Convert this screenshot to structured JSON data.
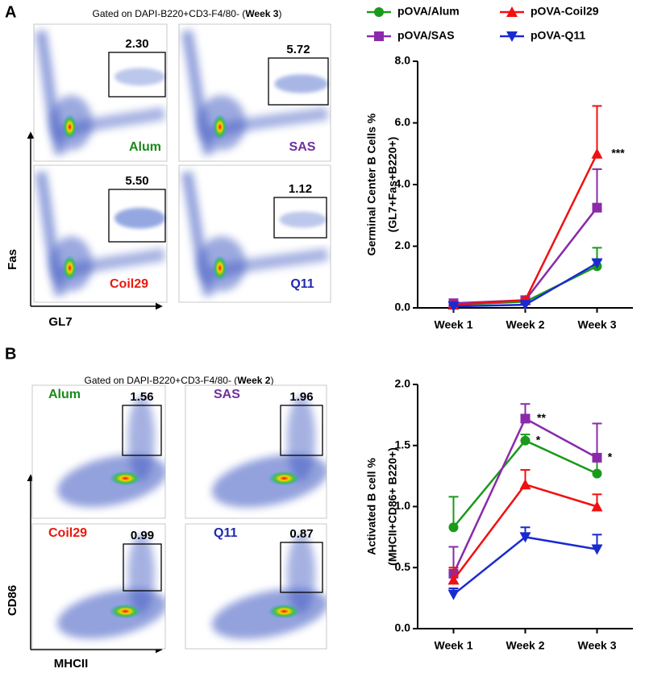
{
  "panel_a": {
    "label": "A",
    "title_prefix": "Gated  on DAPI-B220+CD3-F4/80- (",
    "title_week": "Week 3",
    "title_suffix": ")",
    "y_axis": "Fas",
    "x_axis": "GL7",
    "plots": [
      {
        "group": "Alum",
        "color": "#1a8a1a",
        "percent": "2.30"
      },
      {
        "group": "SAS",
        "color": "#7030a0",
        "percent": "5.72"
      },
      {
        "group": "Coil29",
        "color": "#e8190f",
        "percent": "5.50"
      },
      {
        "group": "Q11",
        "color": "#1f2ab0",
        "percent": "1.12"
      }
    ]
  },
  "panel_b": {
    "label": "B",
    "title_prefix": "Gated  on DAPI-B220+CD3-F4/80- (",
    "title_week": "Week 2",
    "title_suffix": ")",
    "y_axis": "CD86",
    "x_axis": "MHCII",
    "plots": [
      {
        "group": "Alum",
        "color": "#1a8a1a",
        "percent": "1.56"
      },
      {
        "group": "SAS",
        "color": "#7030a0",
        "percent": "1.96"
      },
      {
        "group": "Coil29",
        "color": "#e8190f",
        "percent": "0.99"
      },
      {
        "group": "Q11",
        "color": "#1f2ab0",
        "percent": "0.87"
      }
    ]
  },
  "chart_data": [
    {
      "type": "line",
      "ylabel": [
        "Germinal Center B Cells %",
        "(GL7+Fas+B220+)"
      ],
      "categories": [
        "Week 1",
        "Week 2",
        "Week 3"
      ],
      "ylim": [
        0,
        8
      ],
      "yticks": [
        {
          "value": 0,
          "label": "0.0"
        },
        {
          "value": 2,
          "label": "2.0"
        },
        {
          "value": 4,
          "label": "4.0"
        },
        {
          "value": 6,
          "label": "6.0"
        },
        {
          "value": 8,
          "label": "8.0"
        }
      ],
      "legend": "top",
      "series": [
        {
          "name": "pOVA/Alum",
          "color": "#1a9a1a",
          "marker": "circle",
          "values": [
            0.1,
            0.2,
            1.35
          ],
          "errors": [
            0.05,
            0.05,
            0.6
          ]
        },
        {
          "name": "pOVA/SAS",
          "color": "#8a2aaa",
          "marker": "square",
          "values": [
            0.15,
            0.25,
            3.25
          ],
          "errors": [
            0.05,
            0.05,
            1.25
          ]
        },
        {
          "name": "pOVA-Coil29",
          "color": "#f01010",
          "marker": "triangle-up",
          "values": [
            0.1,
            0.25,
            5.0
          ],
          "errors": [
            0.05,
            0.05,
            1.55
          ]
        },
        {
          "name": "pOVA-Q11",
          "color": "#1a2ad0",
          "marker": "triangle-down",
          "values": [
            0.05,
            0.1,
            1.45
          ],
          "errors": [
            0.03,
            0.03,
            0.1
          ]
        }
      ],
      "annotations": [
        "***"
      ]
    },
    {
      "type": "line",
      "ylabel": [
        "Activated B cell %",
        "(MHCII+CD86+ B220+)"
      ],
      "categories": [
        "Week 1",
        "Week 2",
        "Week 3"
      ],
      "ylim": [
        0,
        2
      ],
      "yticks": [
        {
          "value": 0,
          "label": "0.0"
        },
        {
          "value": 0.5,
          "label": "0.5"
        },
        {
          "value": 1,
          "label": "1.0"
        },
        {
          "value": 1.5,
          "label": "1.5"
        },
        {
          "value": 2,
          "label": "2.0"
        }
      ],
      "series": [
        {
          "color": "#1a9a1a",
          "marker": "circle",
          "values": [
            0.83,
            1.54,
            1.27
          ],
          "errors": [
            0.25,
            0.05,
            0.15
          ]
        },
        {
          "color": "#8a2aaa",
          "marker": "square",
          "values": [
            0.45,
            1.72,
            1.4
          ],
          "errors": [
            0.22,
            0.12,
            0.28
          ]
        },
        {
          "color": "#f01010",
          "marker": "triangle-up",
          "values": [
            0.4,
            1.18,
            1.0
          ],
          "errors": [
            0.1,
            0.12,
            0.1
          ]
        },
        {
          "color": "#1a2ad0",
          "marker": "triangle-down",
          "values": [
            0.28,
            0.75,
            0.65
          ],
          "errors": [
            0.05,
            0.08,
            0.12
          ]
        }
      ],
      "annotations": [
        "**",
        "*",
        "*"
      ]
    }
  ]
}
